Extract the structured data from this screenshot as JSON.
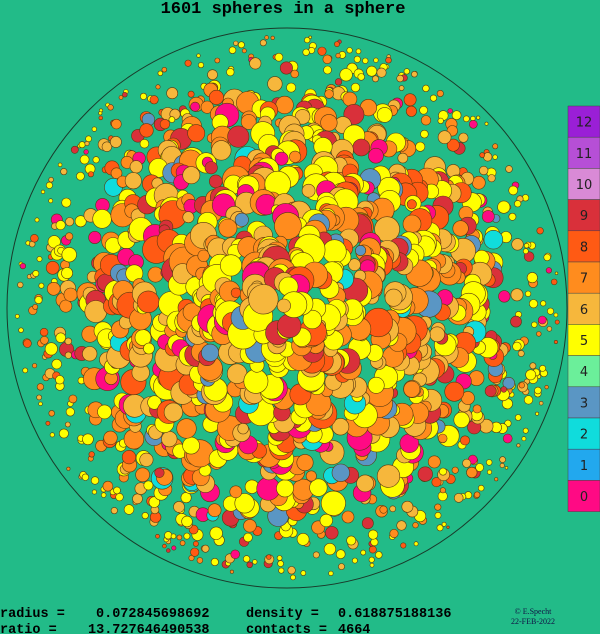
{
  "title": "1601 spheres in a sphere",
  "stats": {
    "radius_label": "radius =",
    "radius": "0.072845698692",
    "density_label": "density =",
    "density": "0.618875188136",
    "ratio_label": "ratio =",
    "ratio": "13.727646490538",
    "contacts_label": "contacts =",
    "contacts": "4664"
  },
  "legend": [
    "12",
    "11",
    "10",
    "9",
    "8",
    "7",
    "6",
    "5",
    "4",
    "3",
    "2",
    "1",
    "0"
  ],
  "credit": {
    "author": "© E.Specht",
    "date": "22-FEB-2022"
  }
}
